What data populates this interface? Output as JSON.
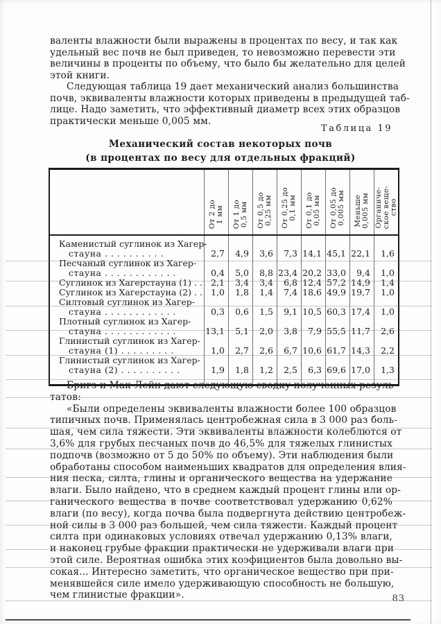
{
  "colors": {
    "paper": "#fdfdfc",
    "ink": "#1e1e1e",
    "table_border": "#1a1a1a",
    "scan_line": "#6e6e6e"
  },
  "page": {
    "number": "83"
  },
  "intro_paragraphs": [
    {
      "indent": false,
      "lines": [
        "валенты влажности были выражены в процентах по весу, и так как",
        "удельный вес почв не был приведен, то невозможно перевести эти",
        "величины в проценты по объему, что было бы желательно для целей",
        "этой книги."
      ]
    },
    {
      "indent": true,
      "lines": [
        "Следующая таблица 19 дает механический анализ большинства",
        "почв, эквиваленты влажности которых приведены в предыдущей таб-",
        "лице. Надо заметить, что эффективный диаметр всех этих образцов",
        "практически меньше 0,005 мм."
      ]
    }
  ],
  "table": {
    "tag": "Таблица 19",
    "title": "Механический состав некоторых почв",
    "subtitle": "(в процентах по весу для отдельных фракций)",
    "columns": [
      [
        "От 2 до",
        "1 мм"
      ],
      [
        "От 1 до",
        "0,5 мм"
      ],
      [
        "От 0,5 до",
        "0,25 мм"
      ],
      [
        "От 0,25 до",
        "0,1 мм"
      ],
      [
        "От 0,1 до",
        "0,05 мм"
      ],
      [
        "От 0,05 до",
        "0,005 мм"
      ],
      [
        "Меньше",
        "0,005 мм"
      ],
      [
        "Органиче-",
        "ское веще-",
        "ство"
      ]
    ],
    "rows": [
      {
        "label_lines": [
          "Каменистый суглинок из Хагер-",
          "стауна . . . .   . . . . . ."
        ],
        "values": [
          "2,7",
          "4,9",
          "3,6",
          "7,3",
          "14,1",
          "45,1",
          "22,1",
          "1,6"
        ]
      },
      {
        "label_lines": [
          "Песчаный суглинок из Хагер-",
          "стауна . . . . . . . . . . . ."
        ],
        "values": [
          "0,4",
          "5,0",
          "8,8",
          "23,4",
          "20,2",
          "33,0",
          "9,4",
          "1,0"
        ]
      },
      {
        "label_lines": [
          "Суглинок из Хагерстауна (1) . ."
        ],
        "values": [
          "2,1",
          "3,4",
          "3,4",
          "6,8",
          "12,4",
          "57,2",
          "14,9",
          "1,4"
        ]
      },
      {
        "label_lines": [
          "Суглинок из Хагерстауна (2) . ."
        ],
        "values": [
          "1,0",
          "1,8",
          "1,4",
          "7,4",
          "18,6",
          "49,9",
          "19,7",
          "1,0"
        ]
      },
      {
        "label_lines": [
          "Силтовый суглинок из Хагер-",
          "стауна . . . . . . . . . . . ."
        ],
        "values": [
          "0,3",
          "0,6",
          "1,5",
          "9,1",
          "10,5",
          "60,3",
          "17,4",
          "1,0"
        ]
      },
      {
        "label_lines": [
          "Плотный суглинок из Хагер-",
          "стауна . . . . . . . . . . . ."
        ],
        "values": [
          "13,1",
          "5,1",
          "2,0",
          "3,8",
          "7,9",
          "55,5",
          "11,7",
          "2,6"
        ]
      },
      {
        "label_lines": [
          "Глинистый суглинок из Хагер-",
          "стауна (1) . . .   . . . . . ."
        ],
        "values": [
          "1,0",
          "2,7",
          "2,6",
          "6,7",
          "10,6",
          "61,7",
          "14,3",
          "2,2"
        ]
      },
      {
        "label_lines": [
          "Глинистый суглинок из Хагер-",
          "стауна (2) . . . . . . . . . ."
        ],
        "values": [
          "1,9",
          "1,8",
          "1,2",
          "2,5",
          "6,3",
          "69,6",
          "17,0",
          "1,3"
        ]
      }
    ]
  },
  "closing_paragraphs": [
    {
      "indent": true,
      "lines": [
        "Бригз и Мак-Лейн дают следующую сводку полученных резуль-",
        "татов:"
      ]
    },
    {
      "indent": true,
      "lines": [
        "«Были определены эквиваленты влажности более 100 образцов",
        "типичных почв. Применялась центробежная сила в 3 000 раз боль-",
        "шая, чем сила тяжести. Эти эквиваленты влажности колеблются от",
        "3,6% для грубых песчаных почв до 46,5% для тяжелых глинистых",
        "подпочв (возможно от 5 до 50% по объему). Эти наблюдения были",
        "обработаны способом наименьших квадратов для определения влия-",
        "ния песка, силта, глины и органического вещества на удержание",
        "влаги. Было найдено, что в среднем каждый процент глины или ор-",
        "ганического вещества в почве соответствовал удержанию 0,62%",
        "влаги (по весу), когда почва была подвергнута действию центробеж-",
        "ной силы в 3 000 раз большей, чем сила тяжести. Каждый процент",
        "силта при одинаковых условиях отвечал удержанию 0,13% влаги,",
        "и наконец грубые фракции практически не удерживали влаги при",
        "этой силе. Вероятная ошибка этих коэфициентов была довольно вы-",
        "сокая... Интересно заметить, что органическое вещество при при-",
        "менявшейся силе имело удерживающую способность не большую,",
        "чем глинистые фракции»."
      ]
    }
  ]
}
